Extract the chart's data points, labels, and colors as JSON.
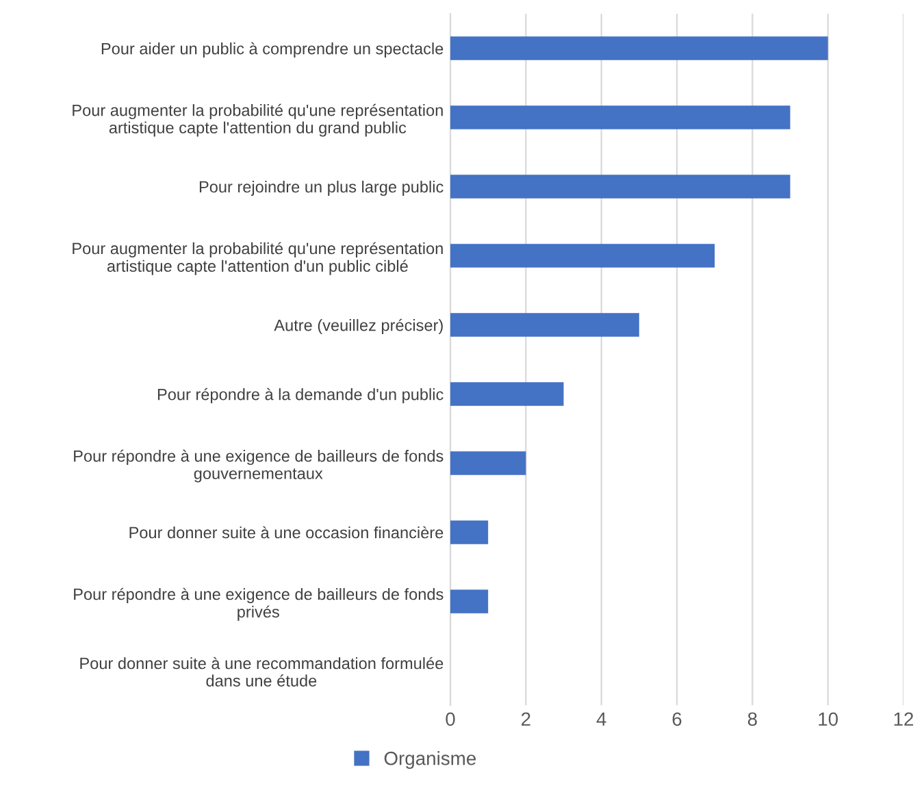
{
  "chart_data": {
    "type": "bar",
    "orientation": "horizontal",
    "categories": [
      "Pour aider un public à comprendre un spectacle",
      "Pour augmenter la probabilité qu'une représentation\nartistique capte l'attention du grand public",
      "Pour rejoindre un plus large public",
      "Pour augmenter la probabilité qu'une représentation\nartistique capte l'attention d'un public ciblé",
      "Autre (veuillez préciser)",
      "Pour répondre à la demande d'un public",
      "Pour répondre à une exigence de bailleurs de fonds\ngouvernementaux",
      "Pour donner suite à une occasion financière",
      "Pour répondre à une exigence de bailleurs de fonds\nprivés",
      "Pour donner suite à une recommandation formulée\ndans une étude"
    ],
    "series": [
      {
        "name": "Organisme",
        "color": "#4472c4",
        "values": [
          10,
          9,
          9,
          7,
          5,
          3,
          2,
          1,
          1,
          0
        ]
      }
    ],
    "xlim": [
      0,
      12
    ],
    "xticks": [
      0,
      2,
      4,
      6,
      8,
      10,
      12
    ],
    "grid": "x",
    "legend": "bottom"
  }
}
